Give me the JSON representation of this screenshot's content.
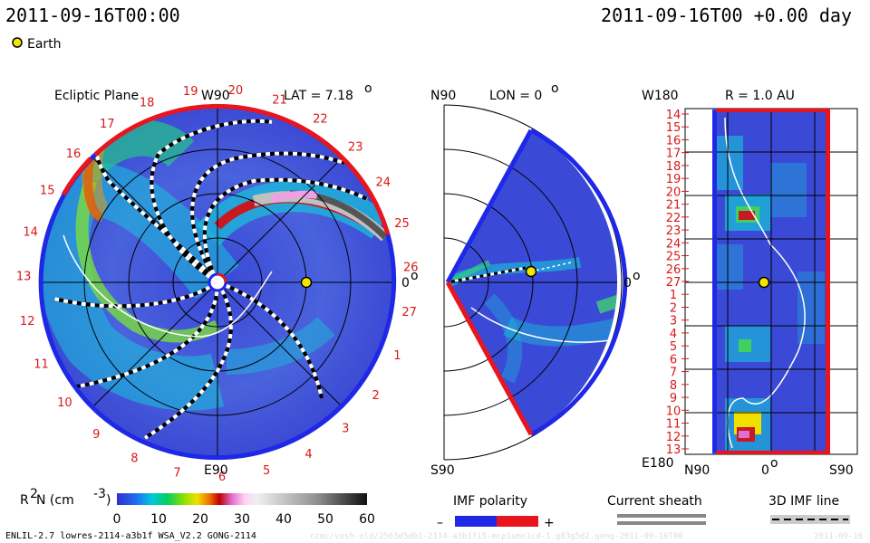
{
  "header": {
    "left_time": "2011-09-16T00:00",
    "right_time": "2011-09-16T00 +0.00 day",
    "legend_earth": "Earth"
  },
  "ecliptic": {
    "title": "Ecliptic Plane",
    "w90": "W90",
    "lat": "LAT = 7.18",
    "lat_sup": "o",
    "e90": "E90",
    "zero": "0",
    "zero_sup": "o",
    "numbers": [
      "19",
      "20",
      "21",
      "22",
      "23",
      "24",
      "25",
      "26",
      "27",
      "1",
      "2",
      "3",
      "4",
      "5",
      "6",
      "7",
      "8",
      "9",
      "10",
      "11",
      "12",
      "13",
      "14",
      "15",
      "16",
      "17",
      "18"
    ]
  },
  "meridional": {
    "n90": "N90",
    "lon": "LON = 0",
    "lon_sup": "o",
    "s90": "S90",
    "zero": "0",
    "zero_sup": "o"
  },
  "synoptic": {
    "w180": "W180",
    "r": "R = 1.0 AU",
    "e180": "E180",
    "bottom": [
      "N90",
      "0",
      "S90"
    ],
    "bottom_sup": "o",
    "rows": [
      "14",
      "15",
      "16",
      "17",
      "18",
      "19",
      "20",
      "21",
      "22",
      "23",
      "24",
      "25",
      "26",
      "27",
      "1",
      "2",
      "3",
      "4",
      "5",
      "6",
      "7",
      "8",
      "9",
      "10",
      "11",
      "12",
      "13"
    ]
  },
  "colorbar": {
    "label": "R",
    "label_sup": "2",
    "label_rest": " N (cm",
    "label_sup2": "-3",
    "label_end": ")",
    "ticks": [
      "0",
      "10",
      "20",
      "30",
      "40",
      "50",
      "60"
    ]
  },
  "legends": {
    "imf_polarity": "IMF polarity",
    "minus": "–",
    "plus": "+",
    "current_sheath": "Current sheath",
    "imf_line": "3D IMF line"
  },
  "footer": {
    "model": "ENLIL-2.7 lowres-2114-a3b1f WSA_V2.2 GONG-2114",
    "path": "ccmc/vosh-old/2563d5db1-2114-a3b1f15-mcp1umn1cd-1.g83g5d2.gong-2011-09-16T00",
    "date": "2011-09-16"
  },
  "colors": {
    "red": "#e8141e",
    "blue": "#1e28e6",
    "background_field": "#4050d8"
  }
}
